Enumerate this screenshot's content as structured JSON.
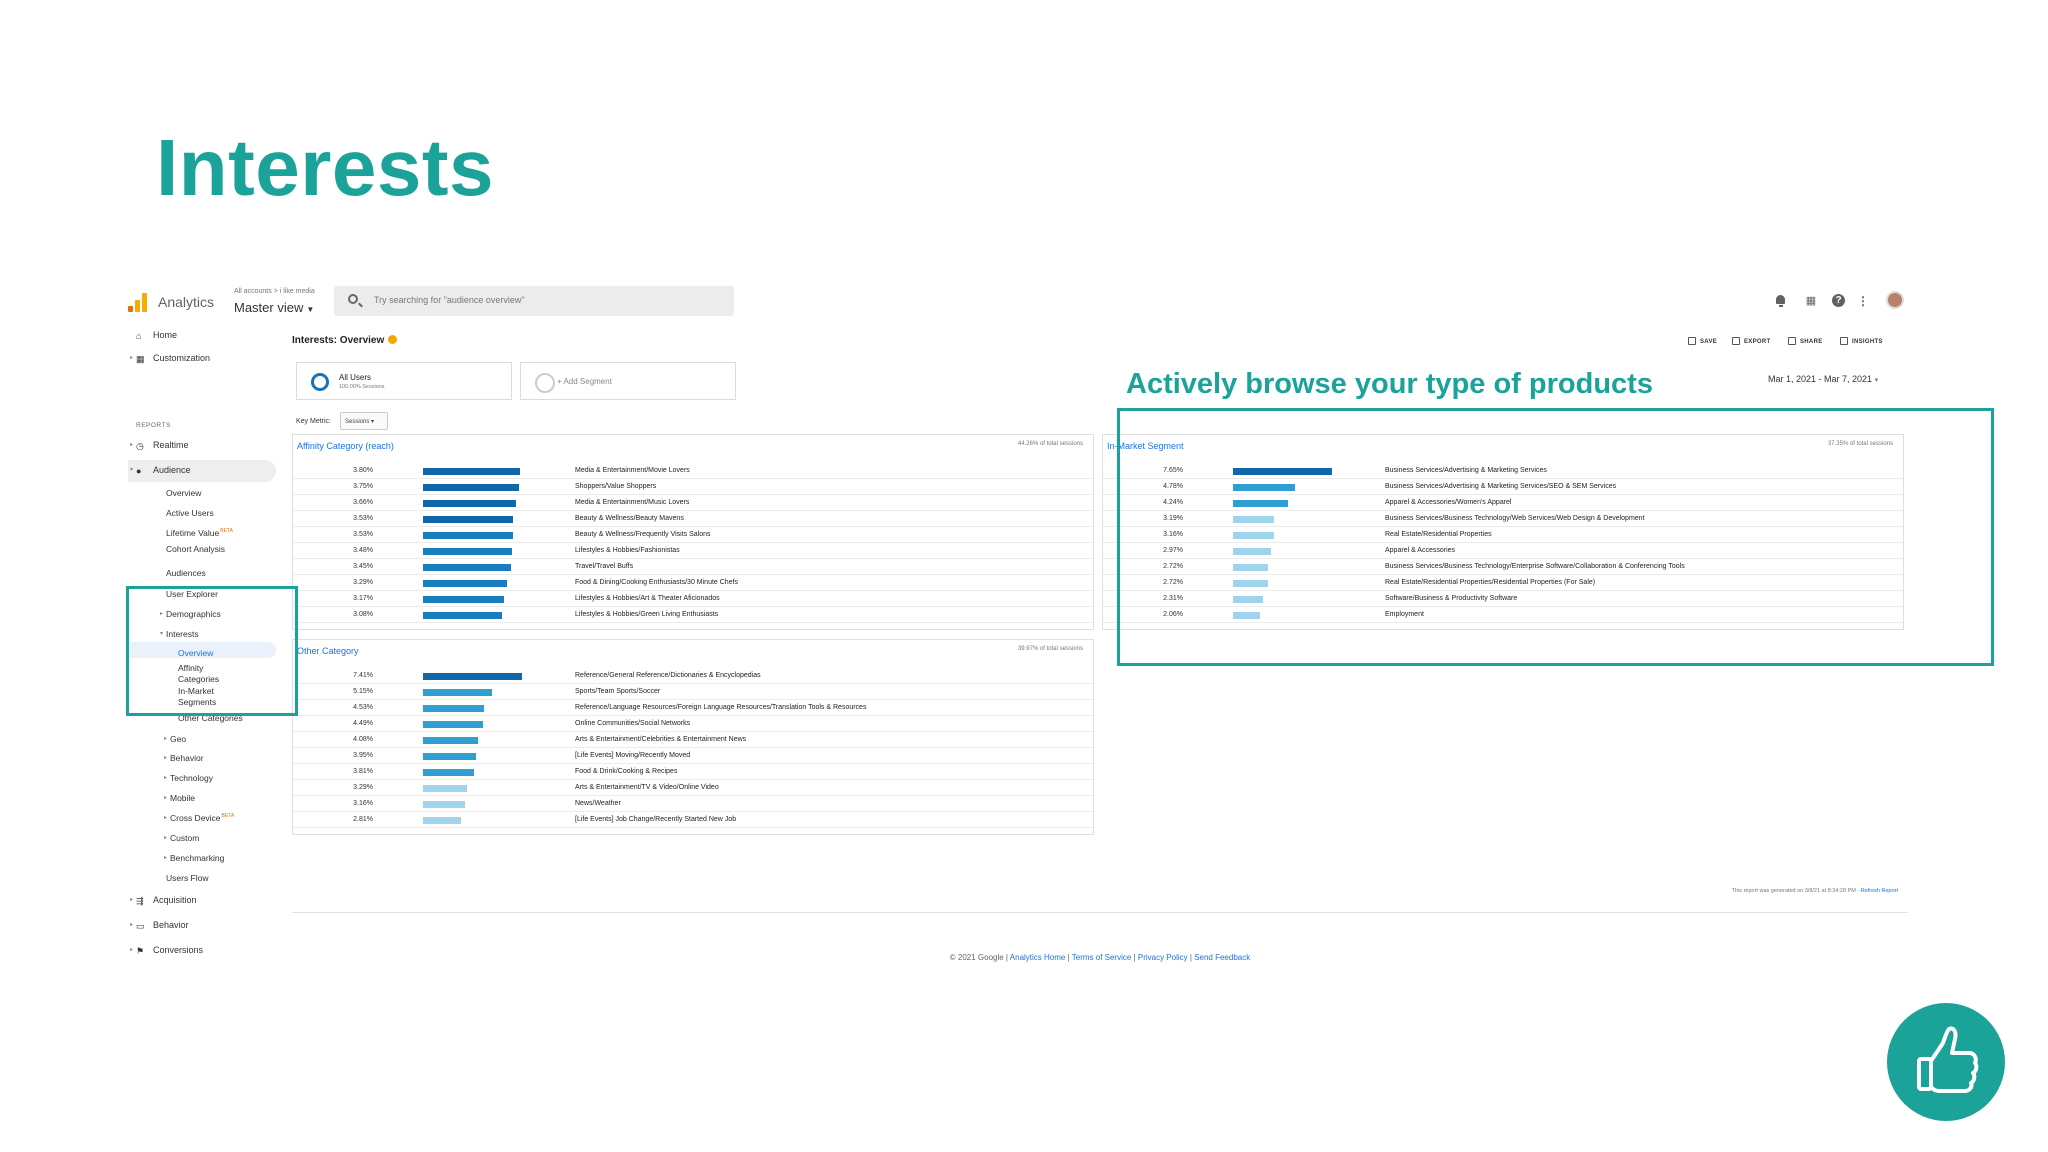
{
  "slide": {
    "title": "Interests",
    "callout": "Actively browse your type of products"
  },
  "accent_color": "#1ba39a",
  "header": {
    "app_name": "Analytics",
    "breadcrumb": "All accounts > i like media",
    "view": "Master view",
    "search_placeholder": "Try searching for \"audience overview\"",
    "icons": [
      "bell-icon",
      "apps-icon",
      "help-icon",
      "more-icon",
      "avatar"
    ]
  },
  "sidebar": {
    "home": "Home",
    "customization": "Customization",
    "reports_label": "REPORTS",
    "realtime": "Realtime",
    "audience": "Audience",
    "audience_items": [
      "Overview",
      "Active Users",
      "Lifetime Value",
      "Cohort Analysis",
      "Audiences",
      "User Explorer",
      "Demographics"
    ],
    "beta": "BETA",
    "interests": "Interests",
    "interests_items": [
      "Overview",
      "Affinity Categories",
      "In-Market Segments",
      "Other Categories"
    ],
    "after_items": [
      "Geo",
      "Behavior",
      "Technology",
      "Mobile",
      "Cross Device",
      "Custom",
      "Benchmarking",
      "Users Flow"
    ],
    "acquisition": "Acquisition",
    "behavior": "Behavior",
    "conversions": "Conversions"
  },
  "page": {
    "title": "Interests: Overview",
    "toolbar": [
      "SAVE",
      "EXPORT",
      "SHARE",
      "INSIGHTS"
    ],
    "segment_name": "All Users",
    "segment_sub": "100.00% Sessions",
    "add_segment": "+ Add Segment",
    "key_metric_label": "Key Metric:",
    "key_metric_value": "Sessions",
    "date_range": "Mar 1, 2021 - Mar 7, 2021",
    "report_note": "This report was generated on 3/8/21 at 8:34:28 PM - ",
    "refresh": "Refresh Report",
    "footer_copy": "© 2021 Google | ",
    "footer_links": [
      "Analytics Home",
      "Terms of Service",
      "Privacy Policy",
      "Send Feedback"
    ]
  },
  "affinity": {
    "title": "Affinity Category (reach)",
    "pct_total": "44.26% of total sessions",
    "rows": [
      {
        "value": "3.80%",
        "label": "Media & Entertainment/Movie Lovers",
        "pct": 3.8
      },
      {
        "value": "3.75%",
        "label": "Shoppers/Value Shoppers",
        "pct": 3.75
      },
      {
        "value": "3.66%",
        "label": "Media & Entertainment/Music Lovers",
        "pct": 3.66
      },
      {
        "value": "3.53%",
        "label": "Beauty & Wellness/Beauty Mavens",
        "pct": 3.53
      },
      {
        "value": "3.53%",
        "label": "Beauty & Wellness/Frequently Visits Salons",
        "pct": 3.53
      },
      {
        "value": "3.48%",
        "label": "Lifestyles & Hobbies/Fashionistas",
        "pct": 3.48
      },
      {
        "value": "3.45%",
        "label": "Travel/Travel Buffs",
        "pct": 3.45
      },
      {
        "value": "3.29%",
        "label": "Food & Dining/Cooking Enthusiasts/30 Minute Chefs",
        "pct": 3.29
      },
      {
        "value": "3.17%",
        "label": "Lifestyles & Hobbies/Art & Theater Aficionados",
        "pct": 3.17
      },
      {
        "value": "3.08%",
        "label": "Lifestyles & Hobbies/Green Living Enthusiasts",
        "pct": 3.08
      }
    ]
  },
  "in_market": {
    "title": "In-Market Segment",
    "pct_total": "37.35% of total sessions",
    "rows": [
      {
        "value": "7.65%",
        "label": "Business Services/Advertising & Marketing Services",
        "pct": 7.65
      },
      {
        "value": "4.78%",
        "label": "Business Services/Advertising & Marketing Services/SEO & SEM Services",
        "pct": 4.78
      },
      {
        "value": "4.24%",
        "label": "Apparel & Accessories/Women's Apparel",
        "pct": 4.24
      },
      {
        "value": "3.19%",
        "label": "Business Services/Business Technology/Web Services/Web Design & Development",
        "pct": 3.19
      },
      {
        "value": "3.16%",
        "label": "Real Estate/Residential Properties",
        "pct": 3.16
      },
      {
        "value": "2.97%",
        "label": "Apparel & Accessories",
        "pct": 2.97
      },
      {
        "value": "2.72%",
        "label": "Business Services/Business Technology/Enterprise Software/Collaboration & Conferencing Tools",
        "pct": 2.72
      },
      {
        "value": "2.72%",
        "label": "Real Estate/Residential Properties/Residential Properties (For Sale)",
        "pct": 2.72
      },
      {
        "value": "2.31%",
        "label": "Software/Business & Productivity Software",
        "pct": 2.31
      },
      {
        "value": "2.06%",
        "label": "Employment",
        "pct": 2.06
      }
    ]
  },
  "other": {
    "title": "Other Category",
    "pct_total": "39.97% of total sessions",
    "rows": [
      {
        "value": "7.41%",
        "label": "Reference/General Reference/Dictionaries & Encyclopedias",
        "pct": 7.41
      },
      {
        "value": "5.15%",
        "label": "Sports/Team Sports/Soccer",
        "pct": 5.15
      },
      {
        "value": "4.53%",
        "label": "Reference/Language Resources/Foreign Language Resources/Translation Tools & Resources",
        "pct": 4.53
      },
      {
        "value": "4.49%",
        "label": "Online Communities/Social Networks",
        "pct": 4.49
      },
      {
        "value": "4.08%",
        "label": "Arts & Entertainment/Celebrities & Entertainment News",
        "pct": 4.08
      },
      {
        "value": "3.95%",
        "label": "[Life Events] Moving/Recently Moved",
        "pct": 3.95
      },
      {
        "value": "3.81%",
        "label": "Food & Drink/Cooking & Recipes",
        "pct": 3.81
      },
      {
        "value": "3.29%",
        "label": "Arts & Entertainment/TV & Video/Online Video",
        "pct": 3.29
      },
      {
        "value": "3.16%",
        "label": "News/Weather",
        "pct": 3.16
      },
      {
        "value": "2.81%",
        "label": "[Life Events] Job Change/Recently Started New Job",
        "pct": 2.81
      }
    ]
  },
  "bar_colors": {
    "dark": "#1167a8",
    "mid": "#2f9fd3",
    "light": "#9fd4ec"
  },
  "thumbs_icon": "thumbs-up-icon"
}
